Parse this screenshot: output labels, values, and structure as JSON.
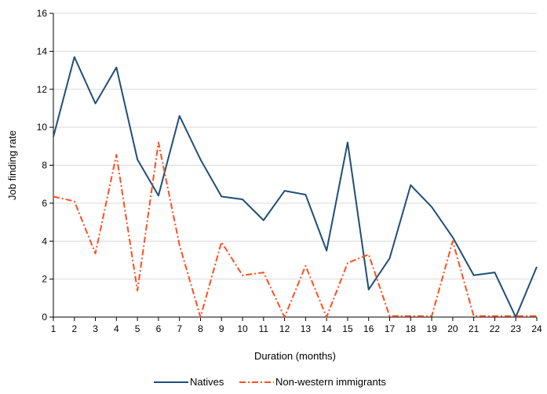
{
  "chart_data": {
    "type": "line",
    "title": "",
    "xlabel": "Duration (months)",
    "ylabel": "Job finding rate",
    "x": [
      1,
      2,
      3,
      4,
      5,
      6,
      7,
      8,
      9,
      10,
      11,
      12,
      13,
      14,
      15,
      16,
      17,
      18,
      19,
      20,
      21,
      22,
      23,
      24
    ],
    "xlim": [
      1,
      24
    ],
    "ylim": [
      0,
      16
    ],
    "yticks": [
      0,
      2,
      4,
      6,
      8,
      10,
      12,
      14,
      16
    ],
    "grid": true,
    "legend_position": "bottom",
    "series": [
      {
        "name": "Natives",
        "color": "#1f4e79",
        "style": "solid",
        "values": [
          9.5,
          13.7,
          11.25,
          13.15,
          8.3,
          6.4,
          10.6,
          8.3,
          6.35,
          6.2,
          5.1,
          6.65,
          6.45,
          3.5,
          9.2,
          1.45,
          3.1,
          6.95,
          5.8,
          4.2,
          2.2,
          2.35,
          0.0,
          2.65
        ]
      },
      {
        "name": "Non-western immigrants",
        "color": "#ff4f1f",
        "style": "dash-dot",
        "values": [
          6.35,
          6.1,
          3.35,
          8.55,
          1.4,
          9.2,
          3.8,
          0.0,
          3.95,
          2.2,
          2.35,
          0.0,
          2.7,
          0.0,
          2.85,
          3.3,
          0.05,
          0.05,
          0.05,
          4.0,
          0.05,
          0.05,
          0.05,
          0.05
        ]
      }
    ]
  }
}
